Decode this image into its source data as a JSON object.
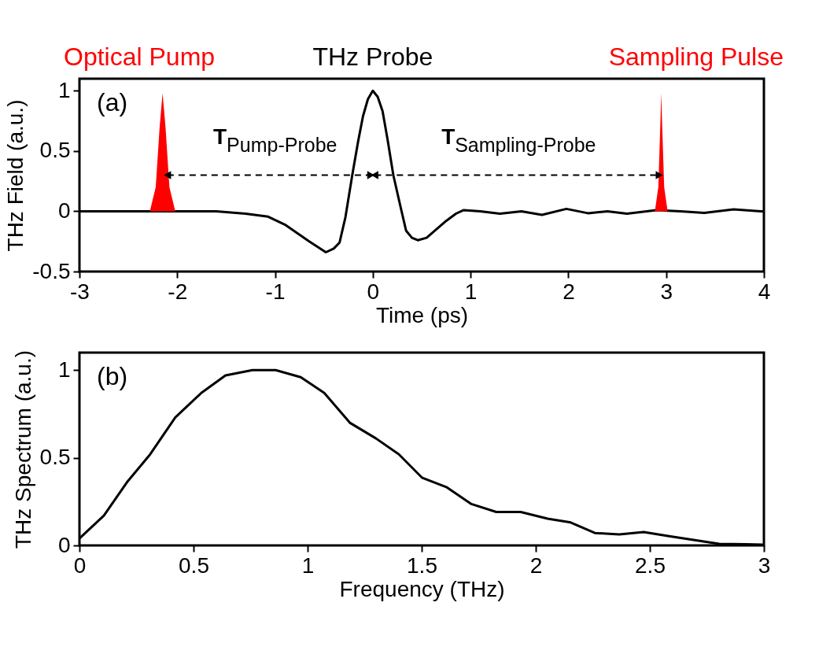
{
  "chart_data": [
    {
      "type": "line",
      "xlabel": "Time (ps)",
      "ylabel": "THz Field (a.u.)",
      "xlim": [
        -3,
        4
      ],
      "ylim": [
        -0.5,
        1.1
      ],
      "xticks": [
        -3,
        -2,
        -1,
        0,
        1,
        2,
        3,
        4
      ],
      "yticks": [
        -0.5,
        0,
        0.5,
        1
      ],
      "grid": false,
      "series": [
        {
          "name": "THz Probe",
          "color": "#000000",
          "x": [
            -3,
            -2,
            -1.6,
            -1.3,
            -1.07,
            -0.9,
            -0.81,
            -0.65,
            -0.48,
            -0.4,
            -0.34,
            -0.28,
            -0.21,
            -0.15,
            -0.1,
            -0.05,
            0,
            0.05,
            0.1,
            0.15,
            0.21,
            0.28,
            0.34,
            0.4,
            0.46,
            0.55,
            0.65,
            0.75,
            0.85,
            0.93,
            1.1,
            1.3,
            1.52,
            1.73,
            1.98,
            2.2,
            2.4,
            2.6,
            2.9,
            3.15,
            3.39,
            3.69,
            3.97,
            4
          ],
          "values": [
            0,
            0,
            0,
            -0.02,
            -0.045,
            -0.11,
            -0.16,
            -0.25,
            -0.34,
            -0.31,
            -0.26,
            -0.05,
            0.3,
            0.58,
            0.79,
            0.93,
            1.0,
            0.95,
            0.83,
            0.6,
            0.3,
            0.05,
            -0.16,
            -0.22,
            -0.24,
            -0.22,
            -0.15,
            -0.08,
            -0.02,
            0.01,
            0.0,
            -0.02,
            0.0,
            -0.03,
            0.02,
            -0.016,
            0.0,
            -0.02,
            0.01,
            0.0,
            -0.014,
            0.016,
            0.0,
            0.0
          ]
        },
        {
          "name": "Optical Pump",
          "type": "area",
          "color": "#ff0000",
          "x": [
            -2.28,
            -2.22,
            -2.18,
            -2.15,
            -2.12,
            -2.08,
            -2.02
          ],
          "values": [
            0,
            0.2,
            0.7,
            0.98,
            0.7,
            0.2,
            0
          ]
        },
        {
          "name": "Sampling Pulse",
          "type": "area",
          "color": "#ff0000",
          "x": [
            2.885,
            2.92,
            2.94,
            2.95,
            2.96,
            2.98,
            3.015
          ],
          "values": [
            0,
            0.2,
            0.7,
            0.98,
            0.7,
            0.2,
            0
          ]
        },
        {
          "name": "T$_{Pump-Probe}$",
          "type": "line",
          "line_style": "dashed",
          "marker": "triangle",
          "color": "#000000",
          "x": [
            -2.1,
            -0.02
          ],
          "values": [
            0.3,
            0.3
          ]
        },
        {
          "name": "T$_{Sampling-Probe}$",
          "type": "line",
          "line_style": "dashed",
          "marker": "triangle",
          "color": "#000000",
          "x": [
            0.02,
            2.93
          ],
          "values": [
            0.3,
            0.3
          ]
        }
      ],
      "annotations": [
        "(a)"
      ]
    },
    {
      "type": "line",
      "xlabel": "Frequency (THz)",
      "ylabel": "THz Spectrum (a.u.)",
      "xlim": [
        0,
        3
      ],
      "ylim": [
        0,
        1.1
      ],
      "xticks": [
        0,
        0.5,
        1,
        1.5,
        2,
        2.5,
        3
      ],
      "yticks": [
        0,
        0.5,
        1
      ],
      "grid": false,
      "series": [
        {
          "color": "#000000",
          "x": [
            0,
            0.107,
            0.208,
            0.31,
            0.42,
            0.534,
            0.64,
            0.758,
            0.86,
            0.97,
            1.073,
            1.185,
            1.3,
            1.4,
            1.501,
            1.608,
            1.718,
            1.827,
            1.934,
            2.052,
            2.153,
            2.259,
            2.366,
            2.473,
            2.585,
            2.686,
            2.804,
            2.922,
            2.995
          ],
          "values": [
            0.04,
            0.17,
            0.36,
            0.52,
            0.73,
            0.87,
            0.97,
            1.0,
            1.0,
            0.96,
            0.87,
            0.7,
            0.61,
            0.52,
            0.387,
            0.333,
            0.236,
            0.191,
            0.191,
            0.153,
            0.131,
            0.071,
            0.063,
            0.076,
            0.053,
            0.033,
            0.009,
            0.007,
            0.004
          ]
        }
      ],
      "annotations": [
        "(b)"
      ]
    }
  ]
}
